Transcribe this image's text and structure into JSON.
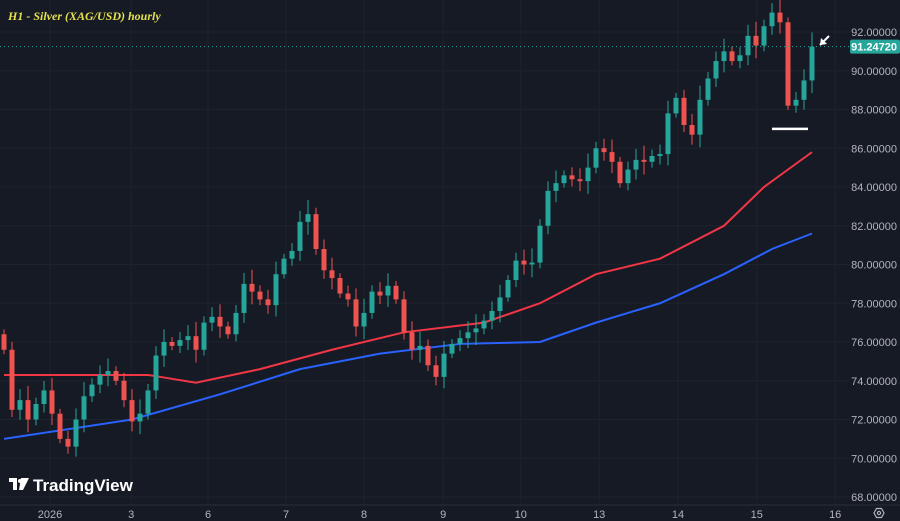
{
  "chart_data": {
    "type": "candlestick",
    "title": "H1 - Silver (XAG/USD) hourly",
    "ylim": [
      68,
      93.5
    ],
    "y_ticks": [
      "68.00000",
      "70.00000",
      "72.00000",
      "74.00000",
      "76.00000",
      "78.00000",
      "80.00000",
      "82.00000",
      "84.00000",
      "86.00000",
      "88.00000",
      "90.00000",
      "92.00000"
    ],
    "x_ticks": [
      {
        "label": "2026",
        "index": 5.75
      },
      {
        "label": "3",
        "index": 15.9
      },
      {
        "label": "6",
        "index": 25.5
      },
      {
        "label": "7",
        "index": 35.25
      },
      {
        "label": "8",
        "index": 45
      },
      {
        "label": "9",
        "index": 54.9
      },
      {
        "label": "10",
        "index": 64.6
      },
      {
        "label": "13",
        "index": 74.4
      },
      {
        "label": "14",
        "index": 84.25
      },
      {
        "label": "15",
        "index": 94.1
      },
      {
        "label": "16",
        "index": 103.9
      }
    ],
    "closes": [
      75.6,
      72.5,
      73,
      72,
      72.8,
      73.5,
      72.3,
      71,
      70.6,
      72,
      73.2,
      73.8,
      74.3,
      74.5,
      74,
      73,
      71.9,
      72.3,
      73.5,
      75.3,
      76,
      75.8,
      76.1,
      76.3,
      75.6,
      77,
      77.3,
      76.8,
      76.4,
      77.5,
      79,
      78.6,
      78.2,
      77.9,
      79.5,
      80.3,
      80.7,
      82.2,
      82.6,
      80.8,
      79.7,
      79.3,
      78.5,
      78.2,
      76.8,
      77.5,
      78.6,
      78.4,
      78.9,
      78.2,
      76.5,
      75.6,
      75.8,
      74.8,
      74.2,
      75.4,
      75.9,
      76.2,
      76.5,
      76.7,
      77.1,
      77.6,
      78.3,
      79.2,
      80.2,
      80,
      80.1,
      82,
      83.8,
      84.2,
      84.6,
      84.4,
      84.3,
      85,
      86,
      85.8,
      85.3,
      84.2,
      84.9,
      85.4,
      85.3,
      85.6,
      85.7,
      87.8,
      88.6,
      87.2,
      86.7,
      88.5,
      89.6,
      90.5,
      91,
      90.5,
      90.8,
      91.8,
      91.3,
      92.3,
      93,
      92.5,
      88.2,
      88.5,
      89.5,
      91.2472
    ],
    "first_open": 76.4,
    "moving_averages": [
      {
        "color": "#f23645",
        "points": [
          [
            0,
            74.3
          ],
          [
            18,
            74.3
          ],
          [
            24,
            73.9
          ],
          [
            32,
            74.6
          ],
          [
            41,
            75.6
          ],
          [
            50,
            76.5
          ],
          [
            60,
            77
          ],
          [
            67,
            78
          ],
          [
            74,
            79.5
          ],
          [
            82,
            80.3
          ],
          [
            90,
            82
          ],
          [
            95,
            84
          ],
          [
            101,
            85.8
          ]
        ]
      },
      {
        "color": "#2962ff",
        "points": [
          [
            0,
            71
          ],
          [
            16,
            72
          ],
          [
            27,
            73.3
          ],
          [
            37,
            74.6
          ],
          [
            47,
            75.4
          ],
          [
            57,
            75.9
          ],
          [
            67,
            76
          ],
          [
            74,
            77
          ],
          [
            82,
            78
          ],
          [
            90,
            79.5
          ],
          [
            96,
            80.8
          ],
          [
            101,
            81.6
          ]
        ]
      }
    ],
    "support_line": {
      "value": 87,
      "from_index": 96,
      "to_index": 100.5,
      "color": "#ffffff"
    },
    "last_price": {
      "value": 91.2472,
      "label": "91.24720",
      "color": "#26a69a"
    },
    "colors": {
      "up": "#26a69a",
      "down": "#ef5350",
      "background": "#161a25"
    },
    "grid": true
  },
  "branding": {
    "name": "TradingView"
  },
  "icons": {
    "arrow": "arrow-down-left-icon",
    "settings": "settings-gear-icon"
  }
}
